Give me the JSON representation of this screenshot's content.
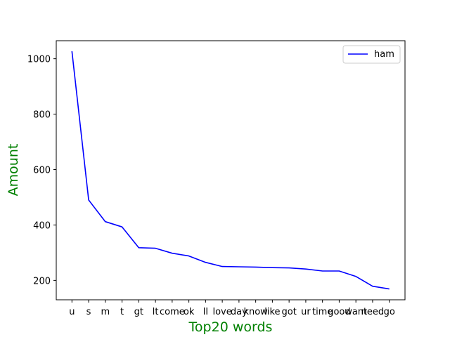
{
  "chart_data": {
    "type": "line",
    "categories": [
      "u",
      "s",
      "m",
      "t",
      "gt",
      "lt",
      "come",
      "ok",
      "ll",
      "love",
      "day",
      "know",
      "like",
      "got",
      "ur",
      "time",
      "good",
      "want",
      "need",
      "go"
    ],
    "series": [
      {
        "name": "ham",
        "color": "#0000ff",
        "values": [
          1027,
          490,
          412,
          393,
          318,
          316,
          298,
          288,
          265,
          250,
          249,
          248,
          246,
          245,
          241,
          234,
          234,
          214,
          179,
          169
        ]
      }
    ],
    "xlabel": "Top20 words",
    "ylabel": "Amount",
    "label_color": "#008000",
    "ylim": [
      130,
      1065
    ],
    "yticks": [
      200,
      400,
      600,
      800,
      1000
    ],
    "grid": false,
    "legend_position": "top-right"
  }
}
